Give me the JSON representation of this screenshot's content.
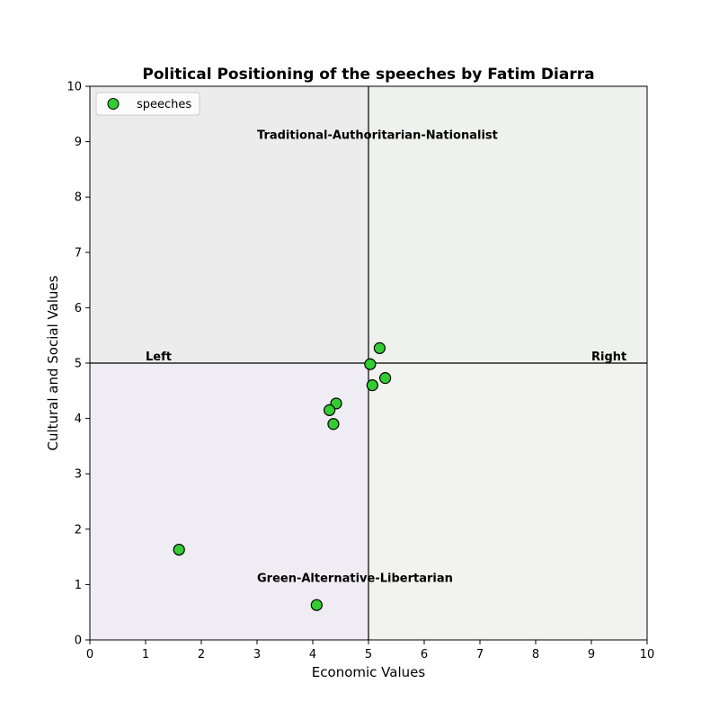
{
  "chart_data": {
    "type": "scatter",
    "title": "Political Positioning of the speeches by Fatim Diarra",
    "xlabel": "Economic Values",
    "ylabel": "Cultural and Social Values",
    "xlim": [
      0,
      10
    ],
    "ylim": [
      0,
      10
    ],
    "xticks": [
      0,
      1,
      2,
      3,
      4,
      5,
      6,
      7,
      8,
      9,
      10
    ],
    "yticks": [
      0,
      1,
      2,
      3,
      4,
      5,
      6,
      7,
      8,
      9,
      10
    ],
    "grid": false,
    "legend_position": "top-left",
    "series": [
      {
        "name": "speeches",
        "color": "#33cc33",
        "edge_color": "#000000",
        "points": [
          {
            "x": 5.2,
            "y": 5.27
          },
          {
            "x": 5.03,
            "y": 4.98
          },
          {
            "x": 5.3,
            "y": 4.73
          },
          {
            "x": 5.07,
            "y": 4.6
          },
          {
            "x": 4.42,
            "y": 4.27
          },
          {
            "x": 4.3,
            "y": 4.15
          },
          {
            "x": 4.37,
            "y": 3.9
          },
          {
            "x": 1.6,
            "y": 1.63
          },
          {
            "x": 4.07,
            "y": 0.63
          }
        ]
      }
    ],
    "quadrants": [
      {
        "name": "top-left",
        "x": [
          0,
          5
        ],
        "y": [
          5,
          10
        ],
        "color": "#ececec"
      },
      {
        "name": "top-right",
        "x": [
          5,
          10
        ],
        "y": [
          5,
          10
        ],
        "color": "#eff1ee"
      },
      {
        "name": "bottom-left",
        "x": [
          0,
          5
        ],
        "y": [
          0,
          5
        ],
        "color": "#efecf3"
      },
      {
        "name": "bottom-right",
        "x": [
          5,
          10
        ],
        "y": [
          0,
          5
        ],
        "color": "#f2f3ef"
      }
    ],
    "divider_lines": {
      "x": 5,
      "y": 5
    },
    "annotations": [
      {
        "text": "Traditional-Authoritarian-Nationalist",
        "x": 3.0,
        "y": 9.05
      },
      {
        "text": "Green-Alternative-Libertarian",
        "x": 3.0,
        "y": 1.05
      },
      {
        "text": "Left",
        "x": 1.0,
        "y": 5.05
      },
      {
        "text": "Right",
        "x": 9.0,
        "y": 5.05
      }
    ]
  }
}
